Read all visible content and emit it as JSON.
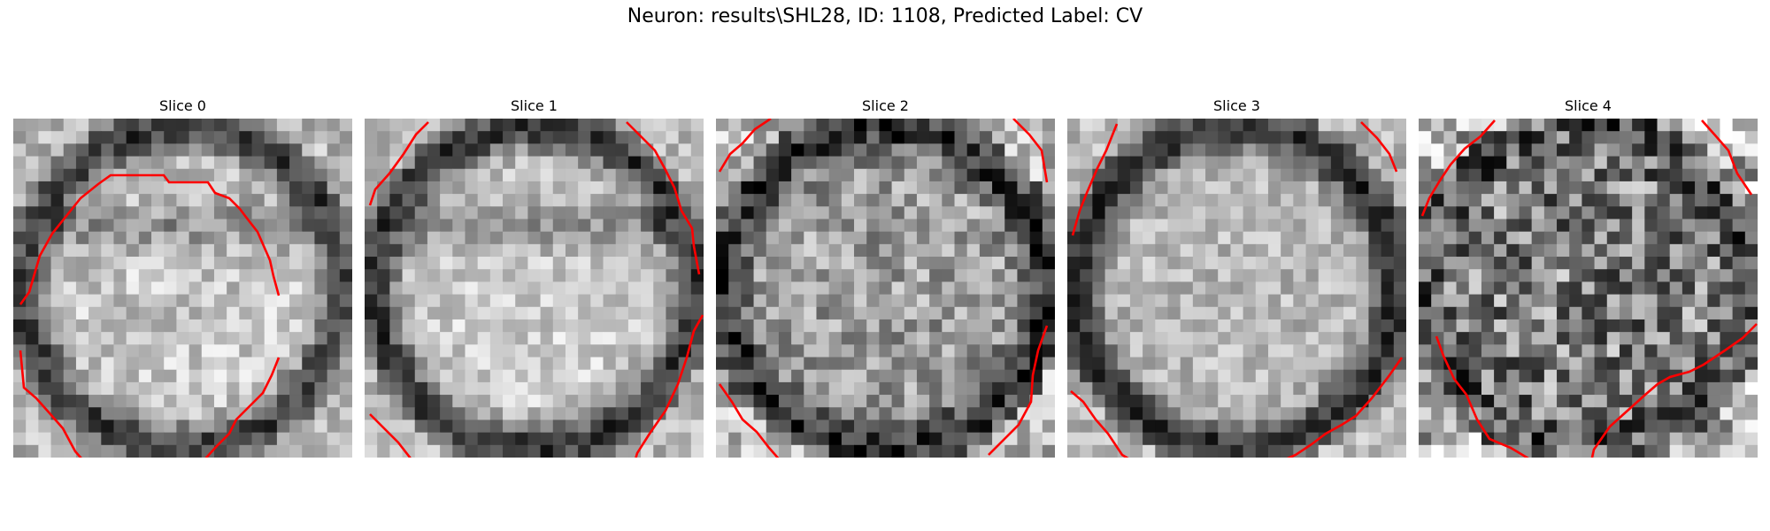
{
  "figure": {
    "title": "Neuron: results\\SHL28, ID: 1108, Predicted Label: CV"
  },
  "contour_color": "#ff0000",
  "slices": [
    {
      "title": "Slice 0",
      "seed": 11,
      "ring_dark": 0.55,
      "center_bright": 0.78,
      "noise": 0.18,
      "dark_band": true
    },
    {
      "title": "Slice 1",
      "seed": 23,
      "ring_dark": 0.6,
      "center_bright": 0.8,
      "noise": 0.16,
      "dark_band": true
    },
    {
      "title": "Slice 2",
      "seed": 37,
      "ring_dark": 0.45,
      "center_bright": 0.62,
      "noise": 0.24,
      "dark_band": false
    },
    {
      "title": "Slice 3",
      "seed": 41,
      "ring_dark": 0.55,
      "center_bright": 0.72,
      "noise": 0.16,
      "dark_band": false
    },
    {
      "title": "Slice 4",
      "seed": 59,
      "ring_dark": 0.15,
      "center_bright": 0.5,
      "noise": 0.36,
      "dark_band": false
    }
  ]
}
